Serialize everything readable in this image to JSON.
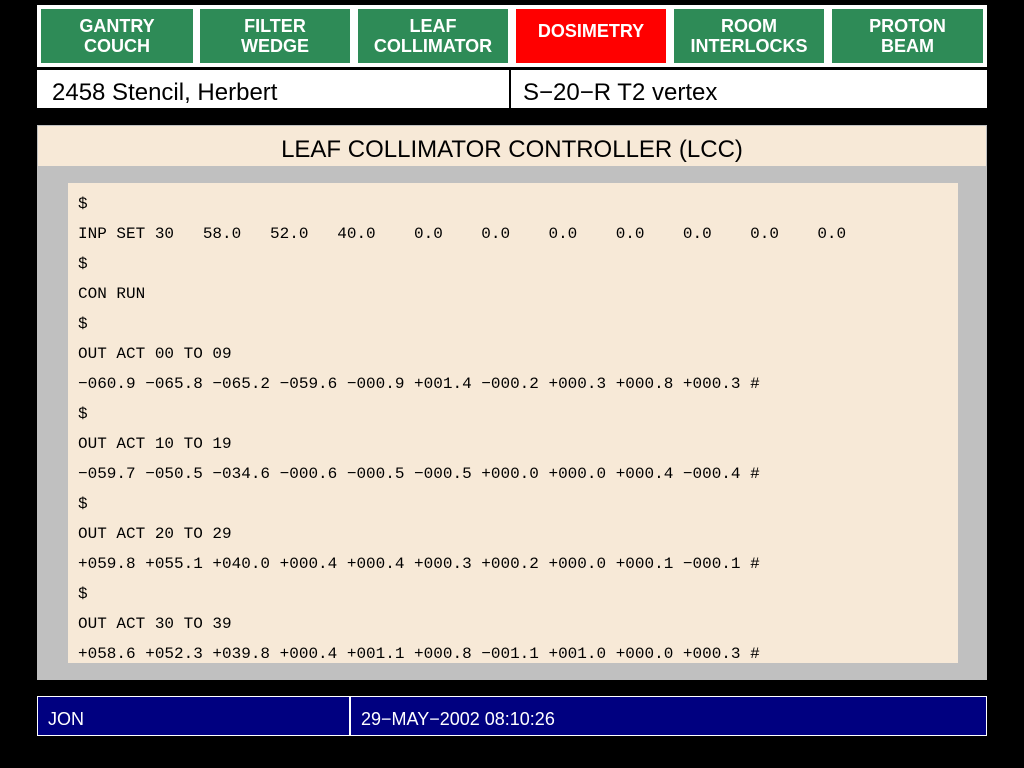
{
  "tabs": [
    {
      "label": "GANTRY\nCOUCH",
      "state": "normal"
    },
    {
      "label": "FILTER\nWEDGE",
      "state": "normal"
    },
    {
      "label": "LEAF\nCOLLIMATOR",
      "state": "normal"
    },
    {
      "label": "DOSIMETRY",
      "state": "alert"
    },
    {
      "label": "ROOM\nINTERLOCKS",
      "state": "normal"
    },
    {
      "label": "PROTON\nBEAM",
      "state": "normal"
    }
  ],
  "patient": {
    "name": "2458 Stencil, Herbert",
    "field": "S−20−R T2 vertex"
  },
  "panel": {
    "title": "LEAF COLLIMATOR CONTROLLER (LCC)"
  },
  "terminal": {
    "lines": [
      "$",
      "INP SET 30   58.0   52.0   40.0    0.0    0.0    0.0    0.0    0.0    0.0    0.0",
      "$",
      "CON RUN",
      "$",
      "OUT ACT 00 TO 09",
      "−060.9 −065.8 −065.2 −059.6 −000.9 +001.4 −000.2 +000.3 +000.8 +000.3 #",
      "$",
      "OUT ACT 10 TO 19",
      "−059.7 −050.5 −034.6 −000.6 −000.5 −000.5 +000.0 +000.0 +000.4 −000.4 #",
      "$",
      "OUT ACT 20 TO 29",
      "+059.8 +055.1 +040.0 +000.4 +000.4 +000.3 +000.2 +000.0 +000.1 −000.1 #",
      "$",
      "OUT ACT 30 TO 39",
      "+058.6 +052.3 +039.8 +000.4 +001.1 +000.8 −001.1 +001.0 +000.0 +000.3 #"
    ]
  },
  "status": {
    "operator": "JON",
    "datetime": "29−MAY−2002 08:10:26"
  },
  "colors": {
    "tab_normal": "#2e8b57",
    "tab_alert": "#ff0000",
    "panel_bg": "#c0c0c0",
    "terminal_bg": "#f7e9d7",
    "status_bg": "#000080"
  }
}
